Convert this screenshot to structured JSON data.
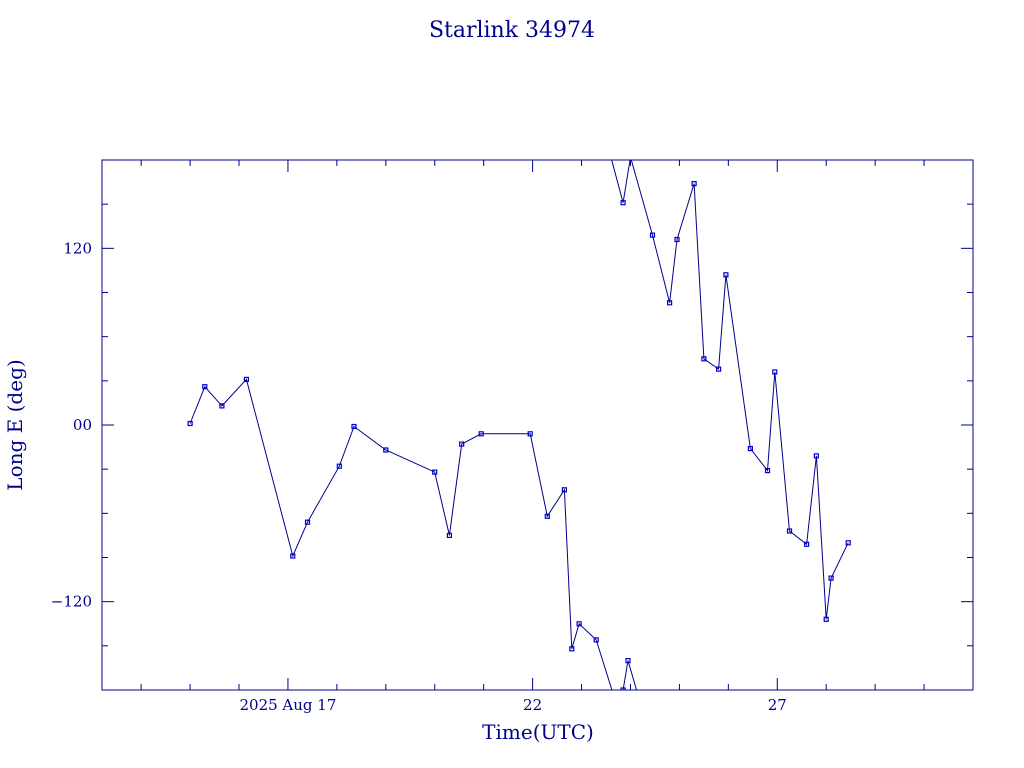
{
  "chart_data": {
    "type": "line",
    "title": "Starlink 34974",
    "xlabel": "Time(UTC)",
    "ylabel": "Long E (deg)",
    "x_unit": "day of August 2025 (UTC)",
    "xlim": [
      13.2,
      31.0
    ],
    "ylim": [
      -180,
      180
    ],
    "x_tick_labels": [
      {
        "x": 17,
        "label": "2025 Aug 17"
      },
      {
        "x": 22,
        "label": "22"
      },
      {
        "x": 27,
        "label": "27"
      }
    ],
    "y_tick_labels": [
      {
        "y": 120,
        "label": "120"
      },
      {
        "y": 0,
        "label": "00"
      },
      {
        "y": -120,
        "label": "−120"
      }
    ],
    "x_major_ticks": [
      17,
      22,
      27
    ],
    "x_minor_ticks": [
      14,
      15,
      16,
      18,
      19,
      20,
      21,
      23,
      24,
      25,
      26,
      28,
      29,
      30
    ],
    "y_major_ticks": [
      -120,
      0,
      120
    ],
    "y_minor_ticks": [
      -150,
      -90,
      -60,
      -30,
      30,
      60,
      90,
      150
    ],
    "grid": false,
    "legend": "none",
    "series": [
      {
        "segments": [
          [
            [
              15.0,
              1
            ],
            [
              15.3,
              26
            ],
            [
              15.65,
              13
            ],
            [
              16.15,
              31
            ],
            [
              17.1,
              -89
            ],
            [
              17.4,
              -66
            ],
            [
              18.05,
              -28
            ],
            [
              18.35,
              -1
            ],
            [
              19.0,
              -17
            ],
            [
              20.0,
              -32
            ],
            [
              20.3,
              -75
            ],
            [
              20.55,
              -13
            ],
            [
              20.95,
              -6
            ],
            [
              21.95,
              -6
            ],
            [
              22.3,
              -62
            ],
            [
              22.65,
              -44
            ],
            [
              22.8,
              -152
            ],
            [
              22.95,
              -135
            ],
            [
              23.3,
              -146
            ],
            [
              23.65,
              -183
            ]
          ],
          [
            [
              23.85,
              -180
            ],
            [
              23.95,
              -160
            ],
            [
              24.15,
              -183
            ]
          ],
          [
            [
              23.6,
              182
            ],
            [
              23.85,
              151
            ],
            [
              24.0,
              182
            ]
          ],
          [
            [
              24.0,
              182
            ],
            [
              24.45,
              129
            ],
            [
              24.8,
              83
            ],
            [
              24.95,
              126
            ],
            [
              25.3,
              164
            ],
            [
              25.5,
              45
            ],
            [
              25.8,
              38
            ],
            [
              25.95,
              102
            ],
            [
              26.45,
              -16
            ],
            [
              26.8,
              -31
            ],
            [
              26.95,
              36
            ],
            [
              27.25,
              -72
            ],
            [
              27.6,
              -81
            ],
            [
              27.8,
              -21
            ],
            [
              28.0,
              -132
            ],
            [
              28.1,
              -104
            ],
            [
              28.45,
              -80
            ]
          ]
        ]
      }
    ],
    "line_color": "#00008b",
    "marker_color": "#0000cd",
    "text_color": "#00008b"
  }
}
